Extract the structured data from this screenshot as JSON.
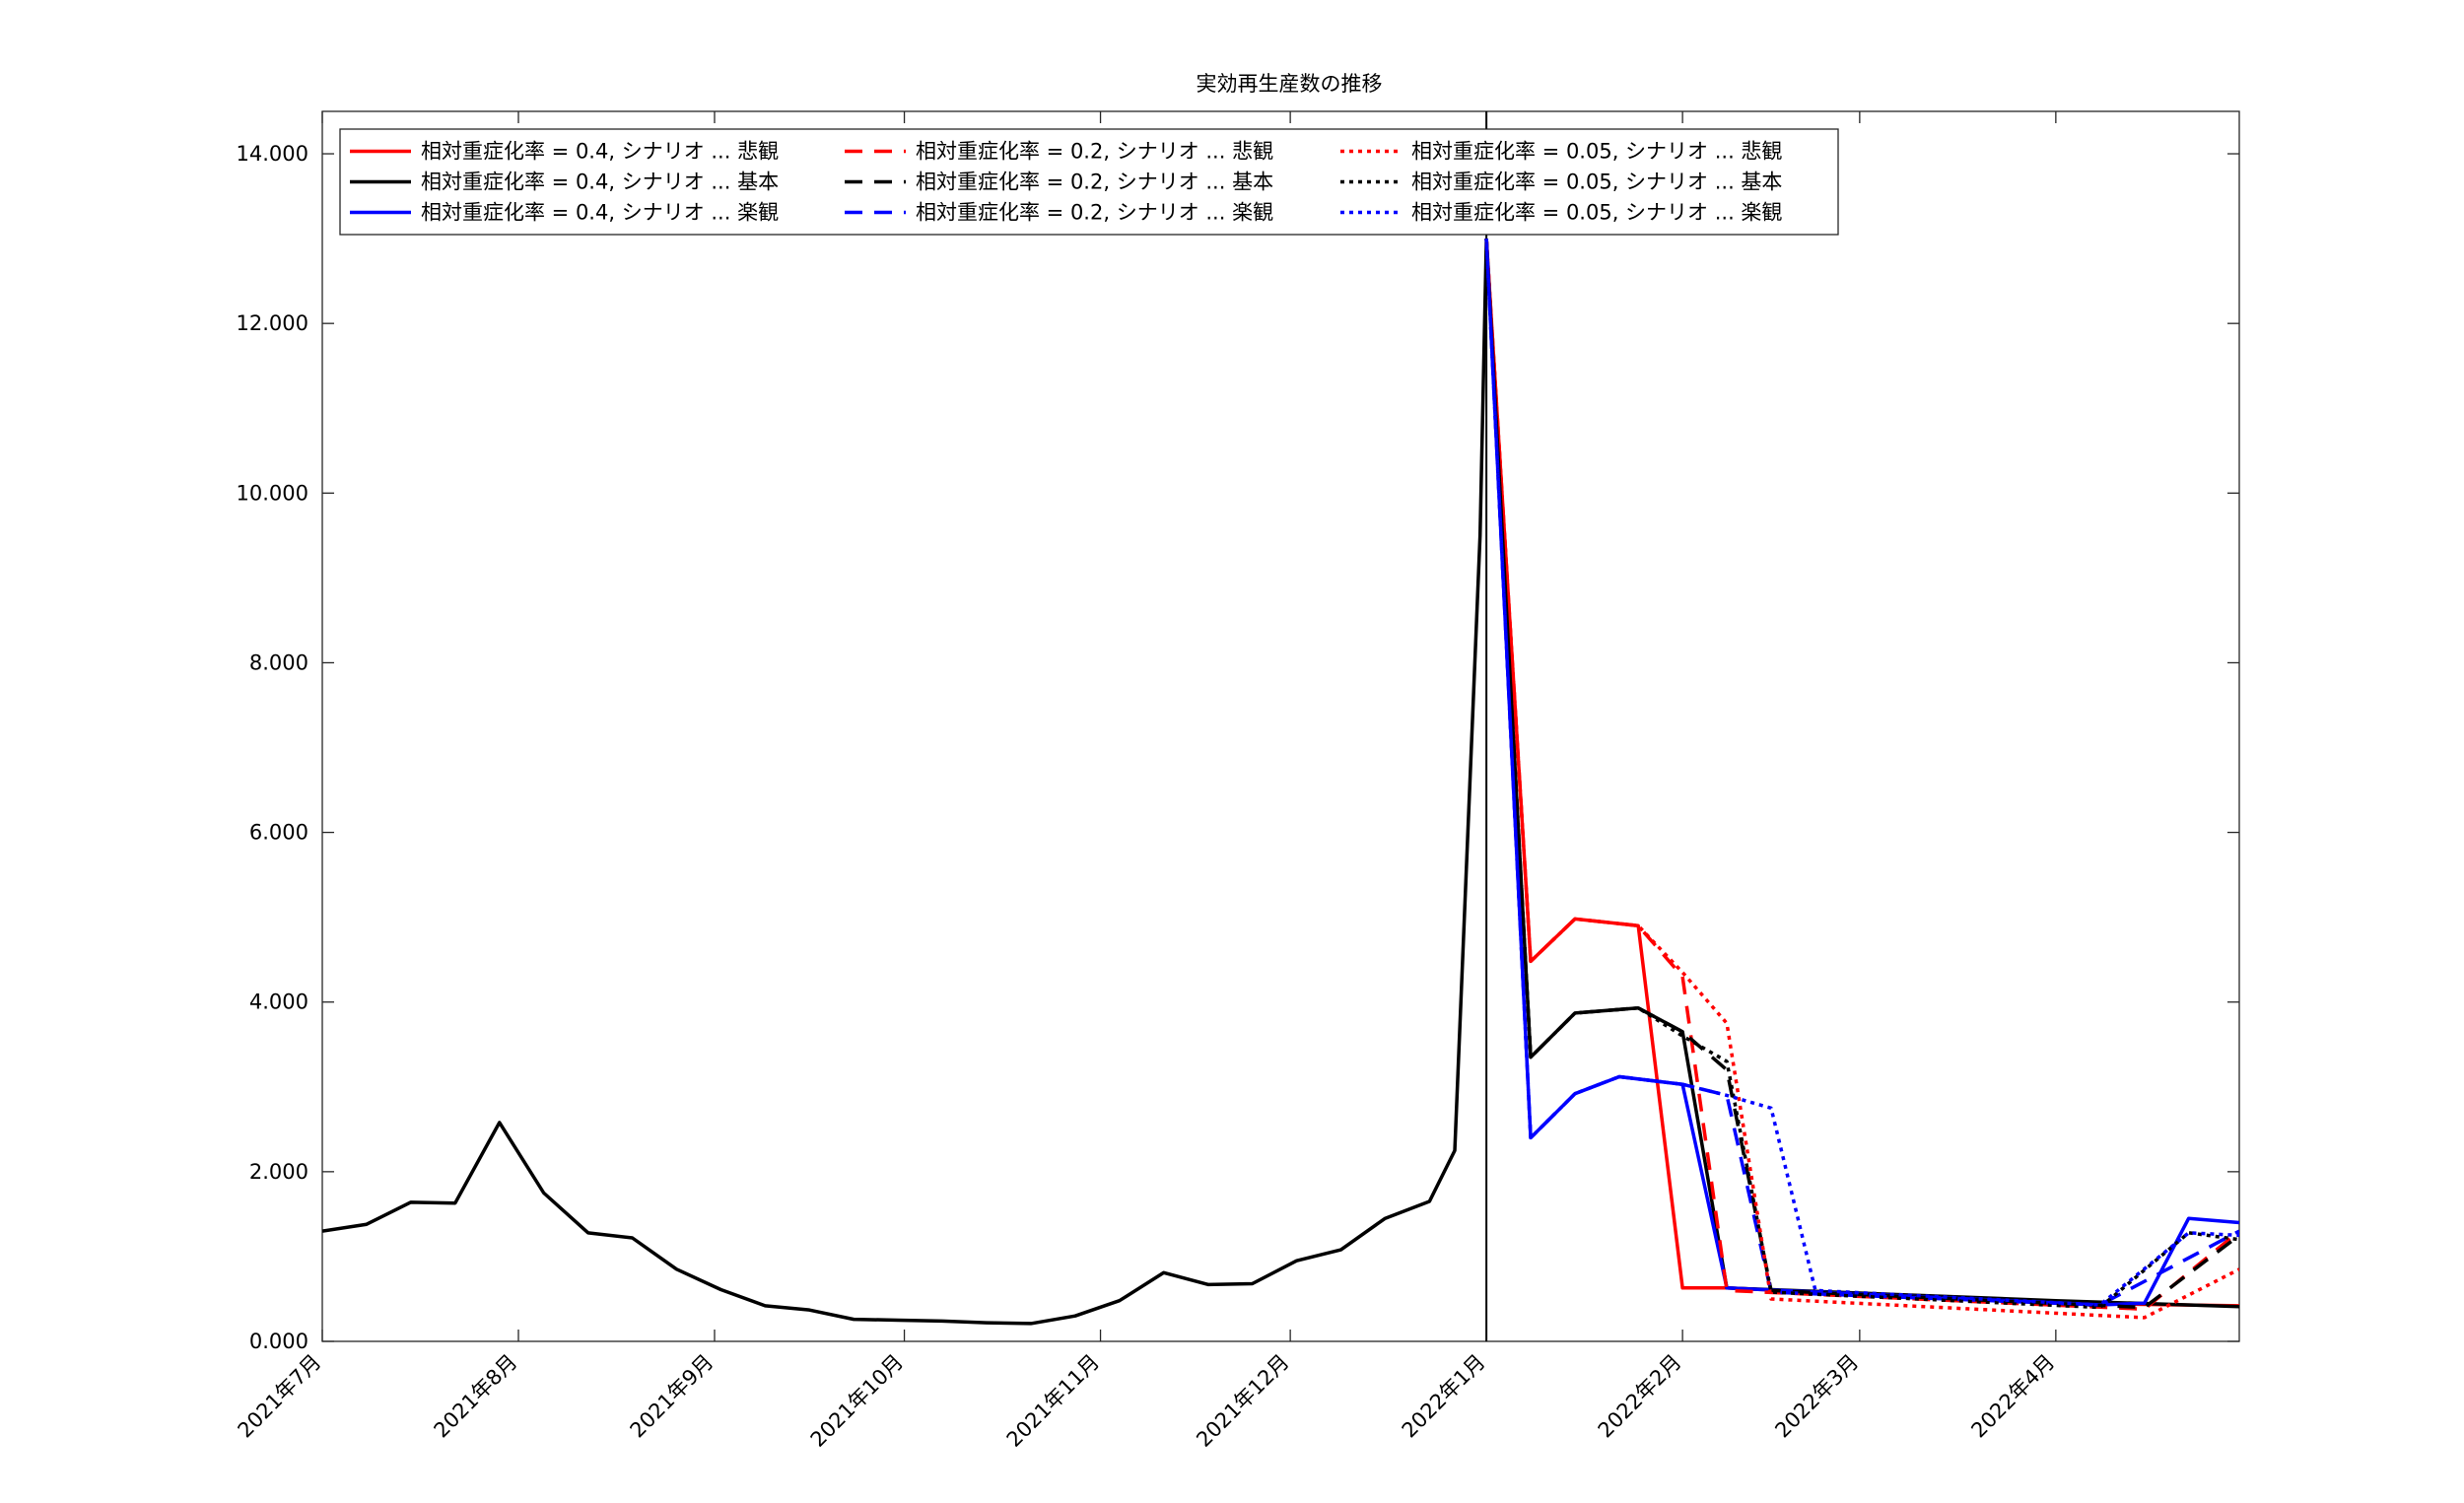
{
  "chart_data": {
    "type": "line",
    "title": "実効再生産数の推移",
    "xlabel": "",
    "ylabel": "",
    "x_axis": "date",
    "xlim": [
      "2021-07-01",
      "2022-04-30"
    ],
    "ylim": [
      0,
      14.5
    ],
    "yticks": [
      0,
      2,
      4,
      6,
      8,
      10,
      12,
      14
    ],
    "ytick_labels": [
      "0.000",
      "2.000",
      "4.000",
      "6.000",
      "8.000",
      "10.000",
      "12.000",
      "14.000"
    ],
    "xticks": [
      "2021-07-01",
      "2021-08-01",
      "2021-09-01",
      "2021-10-01",
      "2021-11-01",
      "2021-12-01",
      "2022-01-01",
      "2022-02-01",
      "2022-03-01",
      "2022-04-01"
    ],
    "xtick_labels": [
      "2021年7月",
      "2021年8月",
      "2021年9月",
      "2021年10月",
      "2021年11月",
      "2021年12月",
      "2022年1月",
      "2022年2月",
      "2022年3月",
      "2022年4月"
    ],
    "grid": false,
    "legend_position": "top-left",
    "vertical_line": "2022-01-01",
    "historical": {
      "color": "#000000",
      "x": [
        "2021-07-01",
        "2021-07-08",
        "2021-07-15",
        "2021-07-22",
        "2021-07-29",
        "2021-08-05",
        "2021-08-12",
        "2021-08-19",
        "2021-08-26",
        "2021-09-02",
        "2021-09-09",
        "2021-09-16",
        "2021-09-23",
        "2021-09-30",
        "2021-10-07",
        "2021-10-14",
        "2021-10-21",
        "2021-10-28",
        "2021-11-04",
        "2021-11-11",
        "2021-11-18",
        "2021-11-25",
        "2021-12-02",
        "2021-12-09",
        "2021-12-16",
        "2021-12-23",
        "2021-12-27",
        "2021-12-31",
        "2022-01-01"
      ],
      "y": [
        1.3,
        1.38,
        1.64,
        1.63,
        2.58,
        1.75,
        1.28,
        1.22,
        0.85,
        0.61,
        0.42,
        0.37,
        0.26,
        0.25,
        0.24,
        0.22,
        0.21,
        0.3,
        0.48,
        0.81,
        0.67,
        0.68,
        0.95,
        1.08,
        1.45,
        1.65,
        2.25,
        9.5,
        13.0
      ]
    },
    "series": [
      {
        "name": "相対重症化率 = 0.4, シナリオ ... 悲観",
        "color": "#ff0000",
        "dash": "solid",
        "x": [
          "2022-01-01",
          "2022-01-08",
          "2022-01-15",
          "2022-01-25",
          "2022-02-01",
          "2022-02-08",
          "2022-04-01",
          "2022-04-30"
        ],
        "y": [
          13.0,
          4.48,
          4.98,
          4.9,
          0.63,
          0.63,
          0.45,
          0.42
        ]
      },
      {
        "name": "相対重症化率 = 0.4, シナリオ ... 基本",
        "color": "#000000",
        "dash": "solid",
        "x": [
          "2022-01-01",
          "2022-01-08",
          "2022-01-15",
          "2022-01-25",
          "2022-02-01",
          "2022-02-08",
          "2022-04-01",
          "2022-04-30"
        ],
        "y": [
          13.0,
          3.35,
          3.87,
          3.93,
          3.65,
          0.63,
          0.48,
          0.41
        ]
      },
      {
        "name": "相対重症化率 = 0.4, シナリオ ... 楽観",
        "color": "#0000ff",
        "dash": "solid",
        "x": [
          "2022-01-01",
          "2022-01-08",
          "2022-01-15",
          "2022-01-22",
          "2022-02-01",
          "2022-02-08",
          "2022-04-08",
          "2022-04-15",
          "2022-04-22",
          "2022-04-30"
        ],
        "y": [
          13.0,
          2.4,
          2.92,
          3.12,
          3.03,
          0.63,
          0.43,
          0.45,
          1.45,
          1.4
        ]
      },
      {
        "name": "相対重症化率 = 0.2, シナリオ ... 悲観",
        "color": "#ff0000",
        "dash": "dashed",
        "x": [
          "2022-01-01",
          "2022-01-08",
          "2022-01-15",
          "2022-01-25",
          "2022-02-01",
          "2022-02-08",
          "2022-04-15",
          "2022-04-30"
        ],
        "y": [
          13.0,
          4.48,
          4.98,
          4.9,
          4.3,
          0.6,
          0.38,
          1.3
        ]
      },
      {
        "name": "相対重症化率 = 0.2, シナリオ ... 基本",
        "color": "#000000",
        "dash": "dashed",
        "x": [
          "2022-01-01",
          "2022-01-08",
          "2022-01-15",
          "2022-01-25",
          "2022-02-01",
          "2022-02-08",
          "2022-02-15",
          "2022-04-15",
          "2022-04-30"
        ],
        "y": [
          13.0,
          3.35,
          3.87,
          3.93,
          3.65,
          3.2,
          0.6,
          0.4,
          1.25
        ]
      },
      {
        "name": "相対重症化率 = 0.2, シナリオ ... 楽観",
        "color": "#0000ff",
        "dash": "dashed",
        "x": [
          "2022-01-01",
          "2022-01-08",
          "2022-01-15",
          "2022-01-22",
          "2022-02-01",
          "2022-02-08",
          "2022-02-15",
          "2022-04-08",
          "2022-04-30"
        ],
        "y": [
          13.0,
          2.4,
          2.92,
          3.12,
          3.03,
          2.9,
          0.58,
          0.43,
          1.3
        ]
      },
      {
        "name": "相対重症化率 = 0.05, シナリオ ... 悲観",
        "color": "#ff0000",
        "dash": "dotted",
        "x": [
          "2022-01-01",
          "2022-01-08",
          "2022-01-15",
          "2022-01-25",
          "2022-02-01",
          "2022-02-08",
          "2022-02-15",
          "2022-04-15",
          "2022-04-30"
        ],
        "y": [
          13.0,
          4.48,
          4.98,
          4.9,
          4.35,
          3.75,
          0.5,
          0.28,
          0.85
        ]
      },
      {
        "name": "相対重症化率 = 0.05, シナリオ ... 基本",
        "color": "#000000",
        "dash": "dotted",
        "x": [
          "2022-01-01",
          "2022-01-08",
          "2022-01-15",
          "2022-01-25",
          "2022-02-01",
          "2022-02-08",
          "2022-02-15",
          "2022-04-08",
          "2022-04-22",
          "2022-04-30"
        ],
        "y": [
          13.0,
          3.35,
          3.87,
          3.93,
          3.6,
          3.3,
          0.58,
          0.4,
          1.28,
          1.2
        ]
      },
      {
        "name": "相対重症化率 = 0.05, シナリオ ... 楽観",
        "color": "#0000ff",
        "dash": "dotted",
        "x": [
          "2022-01-01",
          "2022-01-08",
          "2022-01-15",
          "2022-01-22",
          "2022-02-01",
          "2022-02-08",
          "2022-02-15",
          "2022-02-22",
          "2022-04-08",
          "2022-04-22",
          "2022-04-30"
        ],
        "y": [
          13.0,
          2.4,
          2.92,
          3.12,
          3.03,
          2.9,
          2.75,
          0.6,
          0.43,
          1.28,
          1.25
        ]
      }
    ]
  }
}
